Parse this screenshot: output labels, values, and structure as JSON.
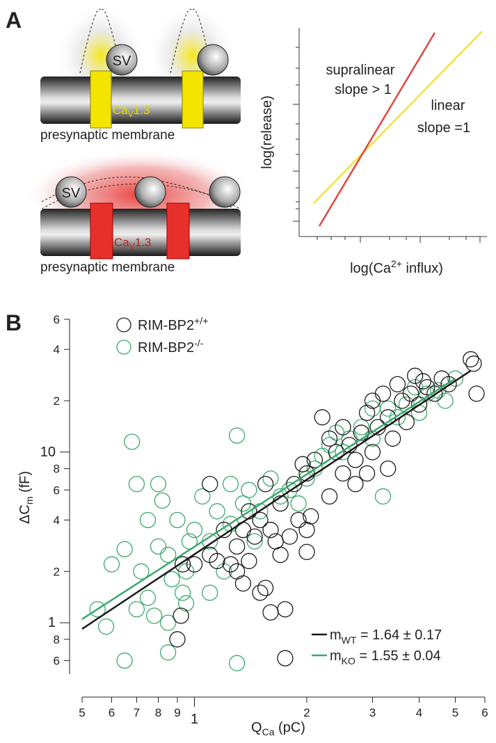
{
  "panel_a": {
    "label": "A",
    "vesicle": "SV",
    "channel": {
      "base": "Ca",
      "sub": "V",
      "rest": "1.3"
    },
    "membrane": "presynaptic membrane",
    "plot": {
      "ylabel": "log(release)",
      "xlabel": {
        "base": "log(Ca",
        "sup": "2+",
        "rest": " influx)"
      },
      "supralinear": [
        "supralinear",
        "slope > 1"
      ],
      "linear": [
        "linear",
        "slope =1"
      ]
    }
  },
  "chart_data": {
    "type": "scatter",
    "panel_label": "B",
    "xlabel": {
      "base": "Q",
      "sub": "Ca",
      "rest": " (pC)"
    },
    "ylabel": {
      "base": "ΔC",
      "sub": "m",
      "rest": " (fF)"
    },
    "log_x": true,
    "log_y": true,
    "xlim": [
      0.5,
      6
    ],
    "ylim": [
      0.5,
      60
    ],
    "xticks": [
      {
        "value": 0.5,
        "label": "5"
      },
      {
        "value": 0.6,
        "label": "6"
      },
      {
        "value": 0.7,
        "label": "7"
      },
      {
        "value": 0.8,
        "label": "8"
      },
      {
        "value": 0.9,
        "label": "9"
      },
      1,
      2,
      3,
      4,
      5,
      6
    ],
    "yticks": [
      {
        "value": 0.6,
        "label": "6"
      },
      {
        "value": 0.8,
        "label": "8"
      },
      1,
      {
        "value": 2,
        "label": "2"
      },
      {
        "value": 4,
        "label": "4"
      },
      {
        "value": 6,
        "label": "6"
      },
      {
        "value": 8,
        "label": "8"
      },
      10,
      {
        "value": 20,
        "label": "2"
      },
      {
        "value": 40,
        "label": "4"
      },
      {
        "value": 60,
        "label": "6"
      }
    ],
    "series": [
      {
        "name": "RIM-BP2",
        "name_sup": "+/+",
        "color": "#1a1a1a",
        "x": [
          0.9,
          0.92,
          0.93,
          1.0,
          1.1,
          1.1,
          1.15,
          1.2,
          1.25,
          1.3,
          1.35,
          1.35,
          1.4,
          1.4,
          1.45,
          1.5,
          1.5,
          1.55,
          1.55,
          1.6,
          1.6,
          1.7,
          1.7,
          1.75,
          1.75,
          1.8,
          1.85,
          1.9,
          1.95,
          2.0,
          2.0,
          2.05,
          2.1,
          2.2,
          2.3,
          2.4,
          2.5,
          2.5,
          2.6,
          2.7,
          2.8,
          2.9,
          2.9,
          3.0,
          3.0,
          3.1,
          3.2,
          3.3,
          3.4,
          3.5,
          3.6,
          3.7,
          3.8,
          3.9,
          4.0,
          4.1,
          4.2,
          4.4,
          4.6,
          4.8,
          5.5,
          5.6,
          5.7,
          2.7,
          2.3,
          3.3,
          2.0,
          1.65,
          1.3
        ],
        "values": [
          0.8,
          1.1,
          2.2,
          2.2,
          6.5,
          2.5,
          2.3,
          3.5,
          2.2,
          2.8,
          3.5,
          1.7,
          4.5,
          2.3,
          3.2,
          4.0,
          1.5,
          6.5,
          1.6,
          3.5,
          1.15,
          5.0,
          2.5,
          1.2,
          0.62,
          3.2,
          6.5,
          4.0,
          8.5,
          3.5,
          7.5,
          4.2,
          9.0,
          16,
          12,
          10,
          7.5,
          14,
          11,
          9,
          13,
          7.5,
          17,
          10,
          20,
          14,
          22,
          16,
          12,
          25,
          20,
          15,
          22,
          28,
          19,
          26,
          24,
          22,
          27,
          25,
          35,
          33,
          22,
          6.5,
          5.5,
          8,
          2.6,
          3.0,
          2.0
        ],
        "fit_x": [
          0.5,
          5.5
        ],
        "fit_y": [
          0.92,
          30
        ],
        "fit_label": {
          "base": "m",
          "sub": "WT",
          "rest": " = 1.64 ± 0.17"
        }
      },
      {
        "name": "RIM-BP2",
        "name_sup": "-/-",
        "color": "#3aa86b",
        "x": [
          0.55,
          0.58,
          0.6,
          0.65,
          0.65,
          0.68,
          0.7,
          0.7,
          0.72,
          0.75,
          0.75,
          0.78,
          0.8,
          0.8,
          0.82,
          0.85,
          0.85,
          0.85,
          0.87,
          0.9,
          0.93,
          0.95,
          0.97,
          1.05,
          1.1,
          1.1,
          1.15,
          1.2,
          1.25,
          1.3,
          1.3,
          1.35,
          1.4,
          1.45,
          1.5,
          1.6,
          1.7,
          1.8,
          1.9,
          2.0,
          2.1,
          2.2,
          2.3,
          2.5,
          2.6,
          2.8,
          3.0,
          3.0,
          3.2,
          3.3,
          3.5,
          3.7,
          3.9,
          4.0,
          4.2,
          4.5,
          4.7,
          5.0,
          2.4,
          1.25,
          1.0,
          0.95
        ],
        "values": [
          1.2,
          0.95,
          2.2,
          2.7,
          0.6,
          11.5,
          6.5,
          1.2,
          2.0,
          1.4,
          4.0,
          1.1,
          6.5,
          2.8,
          5.2,
          1.0,
          0.67,
          2.5,
          1.8,
          4.0,
          1.5,
          1.3,
          3.0,
          5.5,
          3.0,
          1.5,
          4.5,
          2.0,
          3.8,
          12.5,
          0.58,
          5.0,
          6.0,
          3.0,
          4.5,
          7.0,
          5.5,
          6.0,
          5.0,
          7.0,
          8.0,
          9.5,
          11,
          10,
          12,
          14,
          12,
          18,
          5.5,
          18,
          16,
          19,
          24,
          17,
          22,
          23,
          20,
          27,
          13,
          6.5,
          3.5,
          2.0
        ],
        "fit_x": [
          0.5,
          5.0
        ],
        "fit_y": [
          1.05,
          27
        ],
        "fit_label": {
          "base": "m",
          "sub": "KO",
          "rest": " = 1.55 ± 0.04"
        }
      }
    ]
  }
}
